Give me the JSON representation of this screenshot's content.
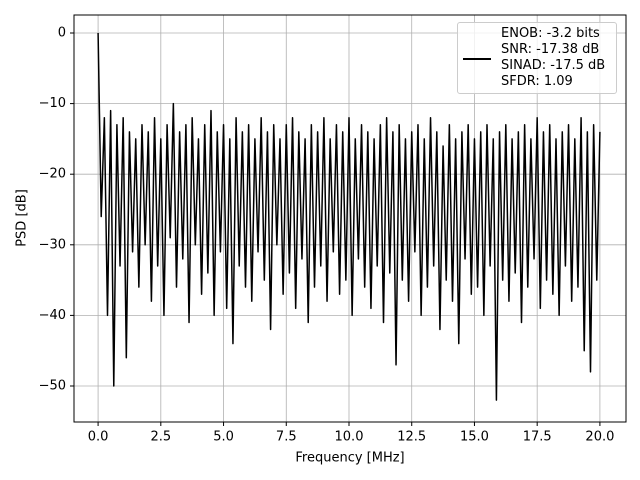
{
  "chart_data": {
    "type": "line",
    "xlabel": "Frequency [MHz]",
    "ylabel": "PSD [dB]",
    "xlim": [
      -0.96,
      21.04
    ],
    "ylim": [
      -55.1,
      2.55
    ],
    "xticks": [
      {
        "value": 0,
        "label": "0.0"
      },
      2.5,
      {
        "value": 5,
        "label": "5.0"
      },
      7.5,
      {
        "value": 10,
        "label": "10.0"
      },
      12.5,
      {
        "value": 15,
        "label": "15.0"
      },
      17.5,
      {
        "value": 20,
        "label": "20.0"
      }
    ],
    "yticks": [
      0,
      {
        "value": -10,
        "label": "−10"
      },
      {
        "value": -20,
        "label": "−20"
      },
      {
        "value": -30,
        "label": "−30"
      },
      {
        "value": -40,
        "label": "−40"
      },
      {
        "value": -50,
        "label": "−50"
      }
    ],
    "grid": true,
    "legend_position": "upper right",
    "x": [
      0,
      0.125,
      0.25,
      0.375,
      0.5,
      0.625,
      0.75,
      0.875,
      1,
      1.125,
      1.25,
      1.375,
      1.5,
      1.625,
      1.75,
      1.875,
      2,
      2.125,
      2.25,
      2.375,
      2.5,
      2.625,
      2.75,
      2.875,
      3,
      3.125,
      3.25,
      3.375,
      3.5,
      3.625,
      3.75,
      3.875,
      4,
      4.125,
      4.25,
      4.375,
      4.5,
      4.625,
      4.75,
      4.875,
      5,
      5.125,
      5.25,
      5.375,
      5.5,
      5.625,
      5.75,
      5.875,
      6,
      6.125,
      6.25,
      6.375,
      6.5,
      6.625,
      6.75,
      6.875,
      7,
      7.125,
      7.25,
      7.375,
      7.5,
      7.625,
      7.75,
      7.875,
      8,
      8.125,
      8.25,
      8.375,
      8.5,
      8.625,
      8.75,
      8.875,
      9,
      9.125,
      9.25,
      9.375,
      9.5,
      9.625,
      9.75,
      9.875,
      10,
      10.125,
      10.25,
      10.375,
      10.5,
      10.625,
      10.75,
      10.875,
      11,
      11.125,
      11.25,
      11.375,
      11.5,
      11.625,
      11.75,
      11.875,
      12,
      12.125,
      12.25,
      12.375,
      12.5,
      12.625,
      12.75,
      12.875,
      13,
      13.125,
      13.25,
      13.375,
      13.5,
      13.625,
      13.75,
      13.875,
      14,
      14.125,
      14.25,
      14.375,
      14.5,
      14.625,
      14.75,
      14.875,
      15,
      15.125,
      15.25,
      15.375,
      15.5,
      15.625,
      15.75,
      15.875,
      16,
      16.125,
      16.25,
      16.375,
      16.5,
      16.625,
      16.75,
      16.875,
      17,
      17.125,
      17.25,
      17.375,
      17.5,
      17.625,
      17.75,
      17.875,
      18,
      18.125,
      18.25,
      18.375,
      18.5,
      18.625,
      18.75,
      18.875,
      19,
      19.125,
      19.25,
      19.375,
      19.5,
      19.625,
      19.75,
      19.875,
      20
    ],
    "series": [
      {
        "name": "ENOB: -3.2 bits\nSNR: -17.38 dB\nSINAD: -17.5 dB\nSFDR: 1.09",
        "color": "#000000",
        "values": [
          0,
          -26,
          -12,
          -40,
          -11,
          -50,
          -13,
          -33,
          -12,
          -46,
          -14,
          -31,
          -15,
          -36,
          -13,
          -30,
          -14,
          -38,
          -12,
          -33,
          -15,
          -40,
          -13,
          -29,
          -10,
          -36,
          -14,
          -32,
          -13,
          -41,
          -12,
          -30,
          -15,
          -37,
          -13,
          -34,
          -11,
          -40,
          -14,
          -31,
          -13,
          -39,
          -15,
          -44,
          -12,
          -33,
          -14,
          -36,
          -13,
          -38,
          -15,
          -31,
          -12,
          -35,
          -14,
          -42,
          -13,
          -30,
          -15,
          -37,
          -13,
          -34,
          -12,
          -39,
          -14,
          -32,
          -15,
          -41,
          -13,
          -36,
          -14,
          -33,
          -12,
          -38,
          -15,
          -31,
          -13,
          -37,
          -14,
          -35,
          -12,
          -40,
          -15,
          -32,
          -13,
          -36,
          -14,
          -39,
          -15,
          -33,
          -13,
          -41,
          -12,
          -34,
          -14,
          -47,
          -13,
          -35,
          -15,
          -38,
          -14,
          -31,
          -13,
          -40,
          -15,
          -36,
          -12,
          -33,
          -14,
          -42,
          -16,
          -35,
          -13,
          -38,
          -15,
          -44,
          -14,
          -32,
          -13,
          -37,
          -15,
          -36,
          -14,
          -40,
          -13,
          -33,
          -15,
          -52,
          -14,
          -35,
          -13,
          -38,
          -15,
          -34,
          -14,
          -41,
          -13,
          -36,
          -15,
          -32,
          -12,
          -39,
          -14,
          -35,
          -13,
          -37,
          -15,
          -40,
          -14,
          -33,
          -13,
          -38,
          -15,
          -36,
          -12,
          -45,
          -14,
          -48,
          -13,
          -35,
          -14
        ]
      }
    ]
  }
}
